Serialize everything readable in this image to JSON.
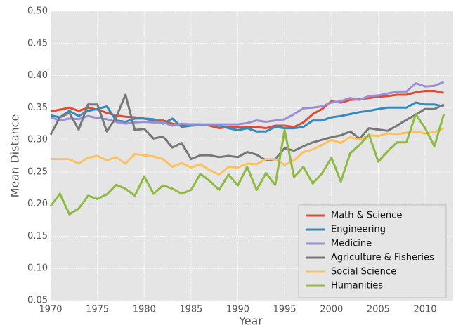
{
  "chart_data": {
    "type": "line",
    "x_label": "Year",
    "y_label": "Mean Distance",
    "x": [
      1970,
      1971,
      1972,
      1973,
      1974,
      1975,
      1976,
      1977,
      1978,
      1979,
      1980,
      1981,
      1982,
      1983,
      1984,
      1985,
      1986,
      1987,
      1988,
      1989,
      1990,
      1991,
      1992,
      1993,
      1994,
      1995,
      1996,
      1997,
      1998,
      1999,
      2000,
      2001,
      2002,
      2003,
      2004,
      2005,
      2006,
      2007,
      2008,
      2009,
      2010,
      2011,
      2012
    ],
    "xlim": [
      1970,
      2013
    ],
    "xticks": [
      1970,
      1975,
      1980,
      1985,
      1990,
      1995,
      2000,
      2005,
      2010
    ],
    "ylim": [
      0.05,
      0.5
    ],
    "yticks": [
      0.05,
      {
        "value": 0.1,
        "label": "0.10"
      },
      0.15,
      {
        "value": 0.2,
        "label": "0.20"
      },
      0.25,
      {
        "value": 0.3,
        "label": "0.30"
      },
      0.35,
      {
        "value": 0.4,
        "label": "0.40"
      },
      0.45,
      {
        "value": 0.5,
        "label": "0.50"
      }
    ],
    "grid": true,
    "legend": "lower right",
    "series": [
      {
        "name": "Math & Science",
        "color": "#e24a33",
        "values": [
          0.344,
          0.347,
          0.35,
          0.345,
          0.35,
          0.347,
          0.342,
          0.338,
          0.336,
          0.335,
          0.333,
          0.33,
          0.33,
          0.325,
          0.323,
          0.324,
          0.324,
          0.322,
          0.318,
          0.32,
          0.32,
          0.32,
          0.32,
          0.318,
          0.322,
          0.322,
          0.32,
          0.327,
          0.34,
          0.348,
          0.36,
          0.358,
          0.362,
          0.363,
          0.365,
          0.367,
          0.368,
          0.37,
          0.37,
          0.374,
          0.376,
          0.376,
          0.373
        ]
      },
      {
        "name": "Engineering",
        "color": "#348abd",
        "values": [
          0.338,
          0.335,
          0.345,
          0.337,
          0.345,
          0.348,
          0.352,
          0.33,
          0.328,
          0.333,
          0.333,
          0.332,
          0.325,
          0.333,
          0.32,
          0.322,
          0.323,
          0.323,
          0.322,
          0.318,
          0.315,
          0.318,
          0.313,
          0.313,
          0.32,
          0.318,
          0.318,
          0.32,
          0.33,
          0.33,
          0.335,
          0.337,
          0.34,
          0.343,
          0.345,
          0.348,
          0.35,
          0.35,
          0.35,
          0.358,
          0.355,
          0.355,
          0.352
        ]
      },
      {
        "name": "Medicine",
        "color": "#988ed5",
        "values": [
          0.335,
          0.33,
          0.333,
          0.332,
          0.337,
          0.334,
          0.332,
          0.328,
          0.325,
          0.327,
          0.328,
          0.327,
          0.327,
          0.322,
          0.325,
          0.324,
          0.324,
          0.324,
          0.324,
          0.324,
          0.324,
          0.326,
          0.33,
          0.328,
          0.33,
          0.332,
          0.34,
          0.349,
          0.35,
          0.352,
          0.358,
          0.36,
          0.365,
          0.362,
          0.368,
          0.369,
          0.372,
          0.375,
          0.375,
          0.388,
          0.383,
          0.384,
          0.39
        ]
      },
      {
        "name": "Agriculture & Fisheries",
        "color": "#777777",
        "values": [
          0.308,
          0.335,
          0.342,
          0.316,
          0.355,
          0.355,
          0.313,
          0.335,
          0.37,
          0.315,
          0.317,
          0.302,
          0.305,
          0.288,
          0.295,
          0.27,
          0.276,
          0.276,
          0.273,
          0.275,
          0.273,
          0.281,
          0.277,
          0.268,
          0.27,
          0.287,
          0.283,
          0.29,
          0.296,
          0.3,
          0.304,
          0.307,
          0.313,
          0.302,
          0.318,
          0.316,
          0.314,
          0.322,
          0.331,
          0.339,
          0.348,
          0.348,
          0.355
        ]
      },
      {
        "name": "Social Science",
        "color": "#fbc15e",
        "values": [
          0.27,
          0.27,
          0.27,
          0.263,
          0.272,
          0.275,
          0.268,
          0.273,
          0.263,
          0.278,
          0.276,
          0.274,
          0.27,
          0.258,
          0.264,
          0.257,
          0.262,
          0.253,
          0.246,
          0.258,
          0.257,
          0.263,
          0.262,
          0.27,
          0.27,
          0.261,
          0.268,
          0.281,
          0.285,
          0.292,
          0.3,
          0.295,
          0.304,
          0.3,
          0.307,
          0.306,
          0.31,
          0.309,
          0.311,
          0.313,
          0.31,
          0.312,
          0.318
        ]
      },
      {
        "name": "Humanities",
        "color": "#8eba42",
        "values": [
          0.197,
          0.216,
          0.184,
          0.193,
          0.213,
          0.208,
          0.215,
          0.23,
          0.224,
          0.213,
          0.243,
          0.216,
          0.229,
          0.224,
          0.216,
          0.222,
          0.247,
          0.236,
          0.222,
          0.246,
          0.229,
          0.258,
          0.222,
          0.248,
          0.23,
          0.315,
          0.242,
          0.258,
          0.232,
          0.248,
          0.272,
          0.235,
          0.279,
          0.292,
          0.308,
          0.266,
          0.282,
          0.296,
          0.296,
          0.34,
          0.318,
          0.29,
          0.34
        ]
      }
    ]
  }
}
